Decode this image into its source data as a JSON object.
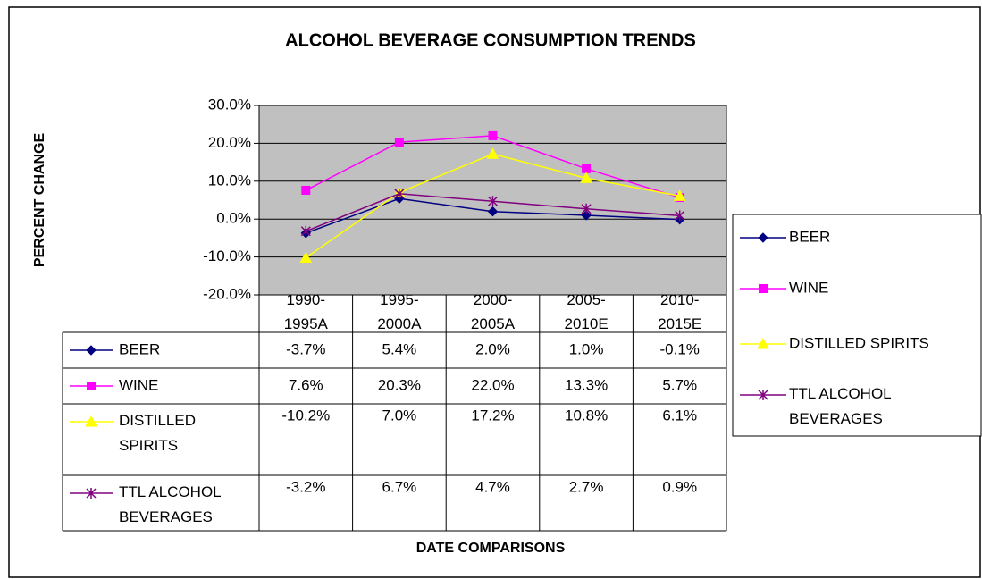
{
  "chart_data": {
    "type": "line",
    "title": "ALCOHOL BEVERAGE CONSUMPTION TRENDS",
    "y_label": "PERCENT CHANGE",
    "x_label": "DATE COMPARISONS",
    "categories": [
      "1990-1995A",
      "1995-2000A",
      "2000-2005A",
      "2005-2010E",
      "2010-2015E"
    ],
    "series": [
      {
        "name": "BEER",
        "color": "#000080",
        "marker": "diamond",
        "values": [
          -3.7,
          5.4,
          2.0,
          1.0,
          -0.1
        ],
        "value_labels": [
          "-3.7%",
          "5.4%",
          "2.0%",
          "1.0%",
          "-0.1%"
        ]
      },
      {
        "name": "WINE",
        "color": "#ff00ff",
        "marker": "square",
        "values": [
          7.6,
          20.3,
          22.0,
          13.3,
          5.7
        ],
        "value_labels": [
          "7.6%",
          "20.3%",
          "22.0%",
          "13.3%",
          "5.7%"
        ]
      },
      {
        "name": "DISTILLED SPIRITS",
        "color": "#ffff00",
        "marker": "triangle",
        "values": [
          -10.2,
          7.0,
          17.2,
          10.8,
          6.1
        ],
        "value_labels": [
          "-10.2%",
          "7.0%",
          "17.2%",
          "10.8%",
          "6.1%"
        ]
      },
      {
        "name": "TTL ALCOHOL BEVERAGES",
        "color": "#800080",
        "marker": "star",
        "values": [
          -3.2,
          6.7,
          4.7,
          2.7,
          0.9
        ],
        "value_labels": [
          "-3.2%",
          "6.7%",
          "4.7%",
          "2.7%",
          "0.9%"
        ]
      }
    ],
    "ylim": [
      -20,
      30
    ],
    "yticks": [
      {
        "value": -20,
        "label": "-20.0%"
      },
      {
        "value": -10,
        "label": "-10.0%"
      },
      {
        "value": 0,
        "label": "0.0%"
      },
      {
        "value": 10,
        "label": "10.0%"
      },
      {
        "value": 20,
        "label": "20.0%"
      },
      {
        "value": 30,
        "label": "30.0%"
      }
    ],
    "grid": true,
    "plot_background": "#c0c0c0",
    "legend": "right",
    "data_table": true
  }
}
